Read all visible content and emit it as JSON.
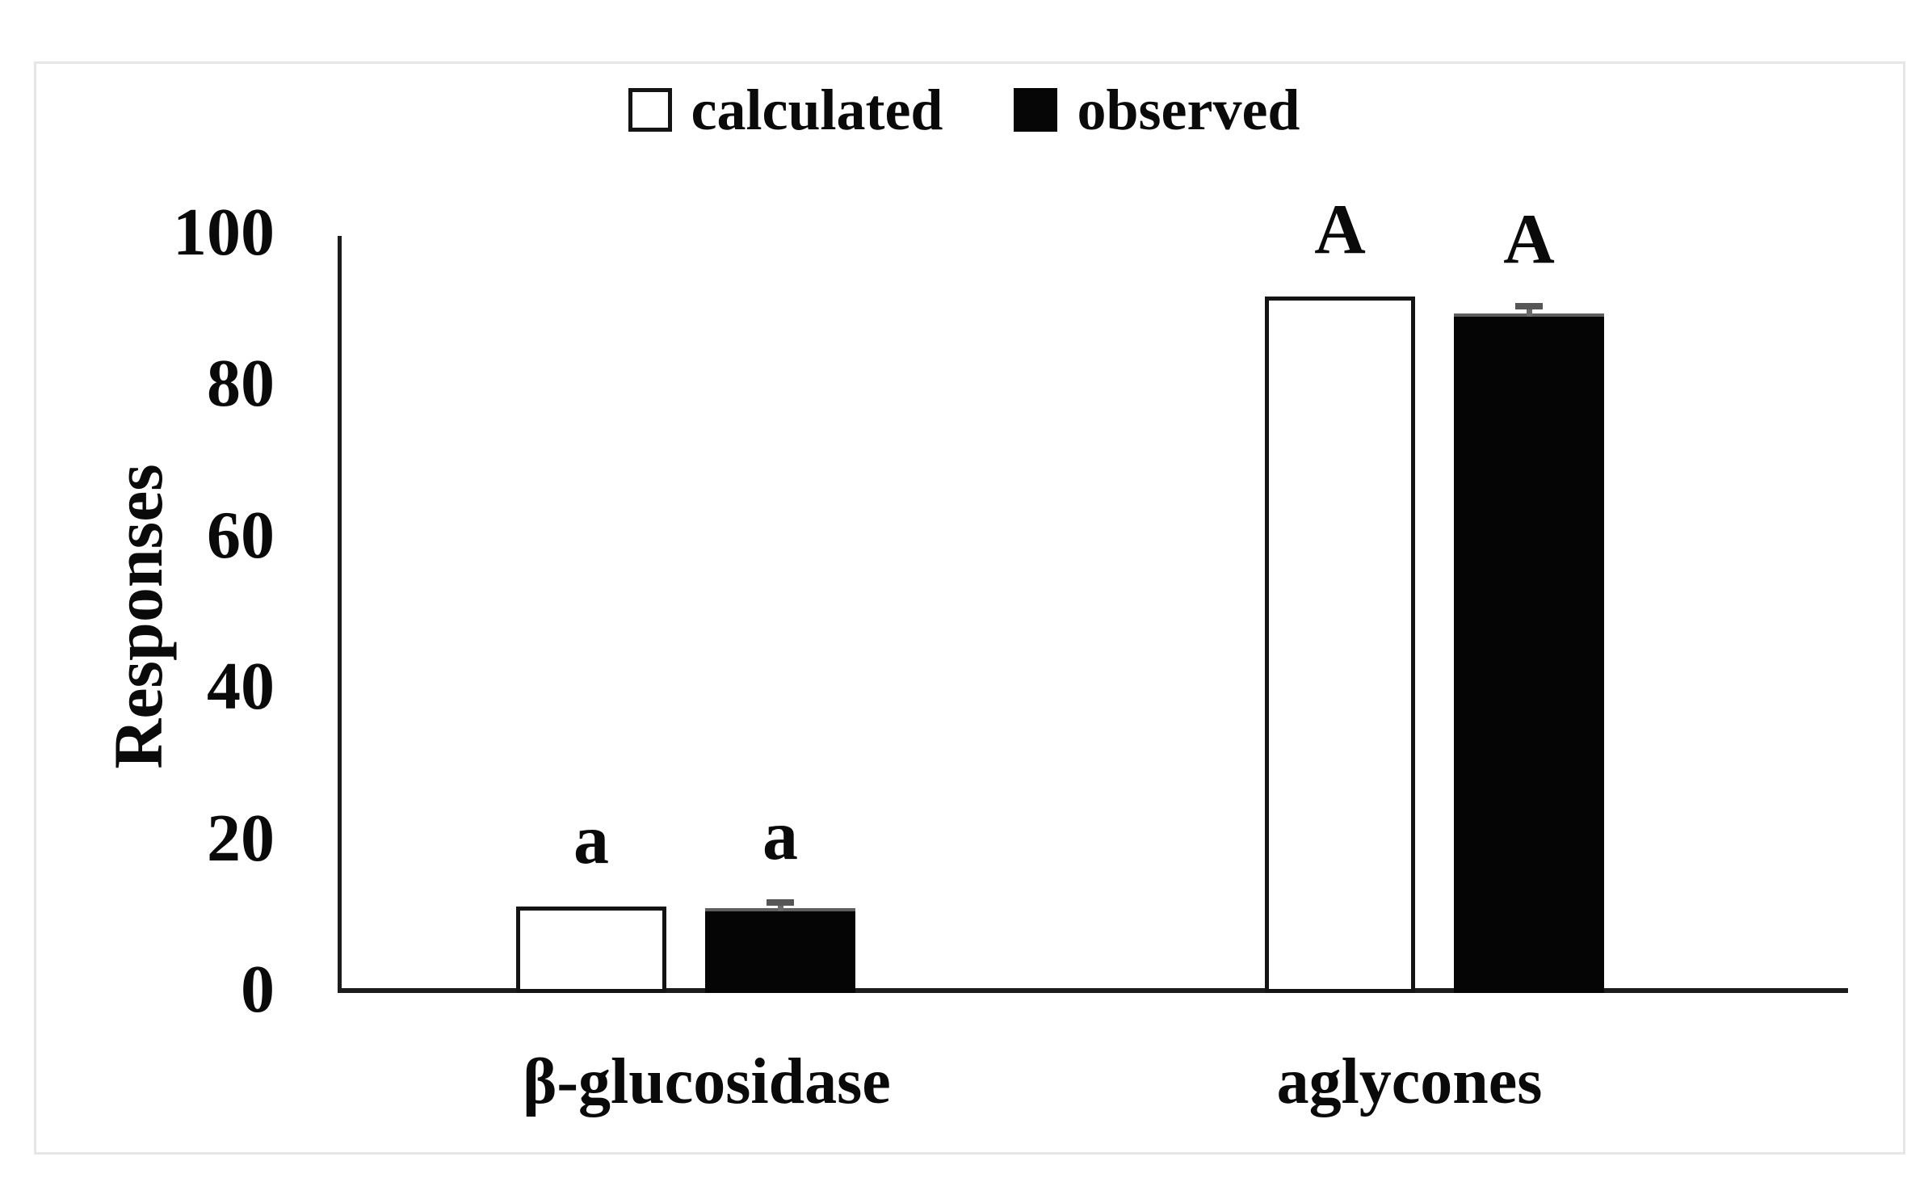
{
  "figure": {
    "legend": {
      "position": "top-center",
      "items": [
        {
          "label": "calculated",
          "swatch": "white-square"
        },
        {
          "label": "observed",
          "swatch": "black-square"
        }
      ]
    },
    "y_axis": {
      "label": "Responses",
      "ticks": [
        0,
        20,
        40,
        60,
        80,
        100
      ],
      "max": 100
    },
    "colors": {
      "bar_calculated_fill": "#ffffff",
      "bar_outline": "#141414",
      "bar_observed_fill": "#050505",
      "error_bar": "#565656",
      "axis_line": "#1c1c1c",
      "frame_border": "#e6e6e6",
      "text": "#0a0a0a"
    }
  },
  "chart_data": {
    "type": "bar",
    "title": "",
    "categories": [
      "β-glucosidase",
      "aglycones"
    ],
    "series": [
      {
        "name": "calculated",
        "fill": "white",
        "values": [
          11.4,
          92.0
        ],
        "errors": [
          0,
          0
        ],
        "significance_letters": [
          "a",
          "A"
        ]
      },
      {
        "name": "observed",
        "fill": "black",
        "values": [
          11.2,
          89.8
        ],
        "errors": [
          0.7,
          0.9
        ],
        "significance_letters": [
          "a",
          "A"
        ]
      }
    ],
    "xlabel": "",
    "ylabel": "Responses",
    "ylim": [
      0,
      100
    ],
    "grid": false,
    "legend_position": "top-center"
  }
}
